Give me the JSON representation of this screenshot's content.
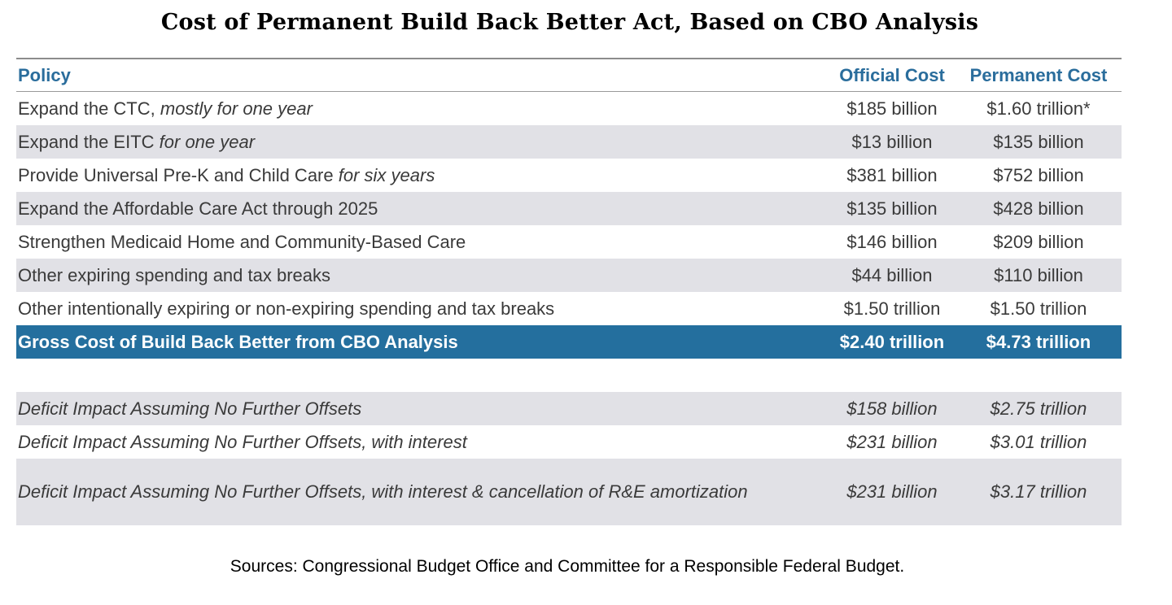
{
  "title": "Cost of Permanent Build Back Better Act, Based on CBO Analysis",
  "headers": {
    "policy": "Policy",
    "official": "Official Cost",
    "permanent": "Permanent Cost"
  },
  "rows": [
    {
      "policy": "Expand the CTC, ",
      "policy_italic": "mostly for one year",
      "official": "$185 billion",
      "permanent": "$1.60 trillion*"
    },
    {
      "policy": "Expand the EITC ",
      "policy_italic": "for one year",
      "official": "$13 billion",
      "permanent": "$135 billion"
    },
    {
      "policy": "Provide Universal Pre-K and Child Care ",
      "policy_italic": "for six years",
      "official": "$381 billion",
      "permanent": "$752 billion"
    },
    {
      "policy": "Expand the Affordable Care Act through 2025",
      "policy_italic": "",
      "official": "$135 billion",
      "permanent": "$428 billion"
    },
    {
      "policy": "Strengthen Medicaid Home and Community-Based Care",
      "policy_italic": "",
      "official": "$146 billion",
      "permanent": "$209 billion"
    },
    {
      "policy": "Other expiring spending and tax breaks",
      "policy_italic": "",
      "official": "$44 billion",
      "permanent": "$110 billion"
    },
    {
      "policy": "Other intentionally expiring or non-expiring spending and tax breaks",
      "policy_italic": "",
      "official": "$1.50 trillion",
      "permanent": "$1.50 trillion"
    }
  ],
  "total": {
    "policy": "Gross Cost of Build Back Better from CBO Analysis",
    "official": "$2.40 trillion",
    "permanent": "$4.73 trillion"
  },
  "deficit_rows": [
    {
      "policy": "Deficit Impact Assuming No Further Offsets",
      "official": "$158 billion",
      "permanent": "$2.75 trillion"
    },
    {
      "policy": "Deficit Impact Assuming No Further Offsets, with interest",
      "official": "$231 billion",
      "permanent": "$3.01 trillion"
    },
    {
      "policy": "Deficit Impact Assuming No Further Offsets, with interest & cancellation of R&E amortization",
      "official": "$231 billion",
      "permanent": "$3.17 trillion"
    }
  ],
  "source": "Sources: Congressional Budget Office and Committee for a Responsible Federal Budget.",
  "colors": {
    "header_text": "#2a6d9c",
    "total_bg": "#246f9e",
    "row_shade": "#e1e1e6"
  }
}
